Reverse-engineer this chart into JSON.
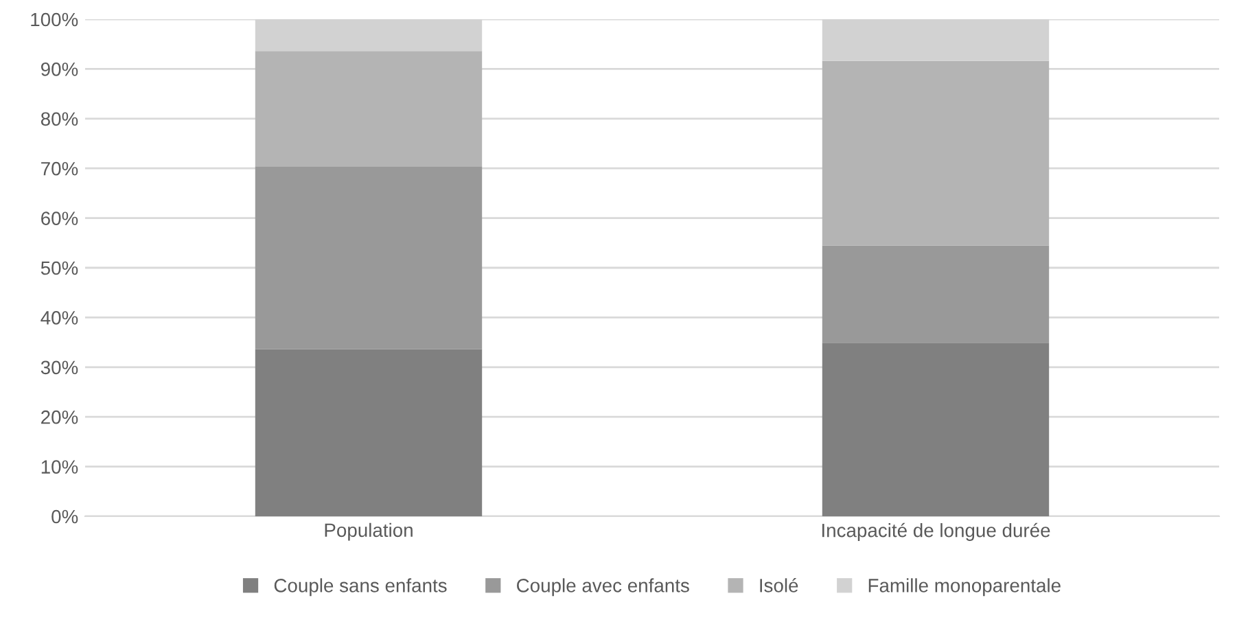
{
  "chart_data": {
    "type": "bar",
    "stacked": true,
    "categories": [
      "Population",
      "Incapacité de longue durée"
    ],
    "series": [
      {
        "name": "Couple sans enfants",
        "color": "#808080",
        "values": [
          33.6,
          34.9
        ]
      },
      {
        "name": "Couple avec enfants",
        "color": "#999999",
        "values": [
          36.8,
          19.6
        ]
      },
      {
        "name": "Isolé",
        "color": "#b4b4b4",
        "values": [
          23.2,
          37.1
        ]
      },
      {
        "name": "Famille monoparentale",
        "color": "#d2d2d2",
        "values": [
          6.4,
          8.4
        ]
      }
    ],
    "ylim": [
      0,
      100
    ],
    "yticks": [
      {
        "value": 0,
        "label": "0%"
      },
      {
        "value": 10,
        "label": "10%"
      },
      {
        "value": 20,
        "label": "20%"
      },
      {
        "value": 30,
        "label": "30%"
      },
      {
        "value": 40,
        "label": "40%"
      },
      {
        "value": 50,
        "label": "50%"
      },
      {
        "value": 60,
        "label": "60%"
      },
      {
        "value": 70,
        "label": "70%"
      },
      {
        "value": 80,
        "label": "80%"
      },
      {
        "value": 90,
        "label": "90%"
      },
      {
        "value": 100,
        "label": "100%"
      }
    ],
    "grid": "y",
    "legend": "bottom"
  }
}
